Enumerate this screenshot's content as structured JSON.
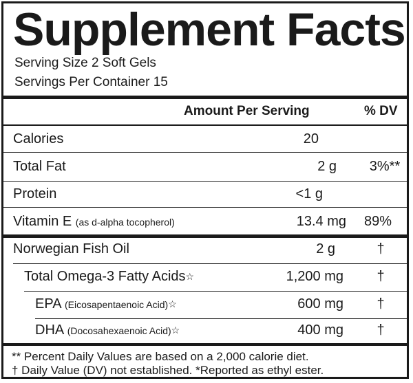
{
  "title": "Supplement Facts",
  "serving_size": "Serving Size 2 Soft Gels",
  "servings_per_container": "Servings Per Container 15",
  "header": {
    "amount": "Amount Per Serving",
    "dv": "% DV"
  },
  "rows": [
    {
      "name": "Calories",
      "sub": "",
      "mark": "",
      "amount": "20",
      "dv": ""
    },
    {
      "name": "Total Fat",
      "sub": "",
      "mark": "",
      "amount": "2 g",
      "dv": "3%**"
    },
    {
      "name": "Protein",
      "sub": "",
      "mark": "",
      "amount": "<1 g",
      "dv": ""
    },
    {
      "name": "Vitamin E",
      "sub": "(as d-alpha tocopherol)",
      "mark": "",
      "amount": "13.4 mg",
      "dv": "89%"
    },
    {
      "name": "Norwegian Fish Oil",
      "sub": "",
      "mark": "",
      "amount": "2 g",
      "dv": "†"
    },
    {
      "name": "Total Omega-3 Fatty Acids",
      "sub": "",
      "mark": "☆",
      "amount": "1,200 mg",
      "dv": "†"
    },
    {
      "name": "EPA",
      "sub": "(Eicosapentaenoic Acid)",
      "mark": "☆",
      "amount": "600 mg",
      "dv": "†"
    },
    {
      "name": "DHA",
      "sub": "(Docosahexaenoic Acid)",
      "mark": "☆",
      "amount": "400 mg",
      "dv": "†"
    }
  ],
  "footnotes": {
    "line1": "** Percent Daily Values are based on a 2,000 calorie diet.",
    "line2": "† Daily Value (DV) not established.  *Reported as ethyl ester."
  }
}
